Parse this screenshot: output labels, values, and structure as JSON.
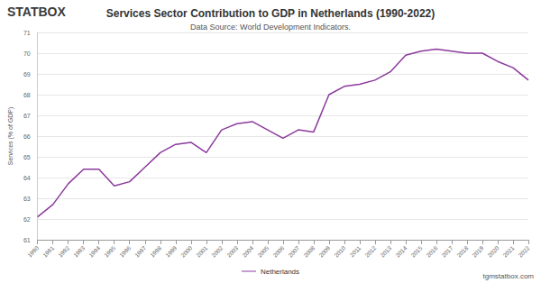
{
  "chart_data": {
    "type": "line",
    "title": "Services Sector Contribution to GDP in Netherlands (1990-2022)",
    "subtitle": "Data Source: World Development Indicators.",
    "logo": "STATBOX",
    "footer": "tgmstatbox.com",
    "y_label": "Services (% of GDP)",
    "categories": [
      "1990",
      "1991",
      "1992",
      "1993",
      "1994",
      "1995",
      "1996",
      "1997",
      "1998",
      "1999",
      "2000",
      "2001",
      "2002",
      "2003",
      "2004",
      "2005",
      "2006",
      "2007",
      "2008",
      "2009",
      "2010",
      "2011",
      "2012",
      "2013",
      "2014",
      "2015",
      "2016",
      "2017",
      "2018",
      "2019",
      "2020",
      "2021",
      "2022"
    ],
    "series": [
      {
        "name": "Netherlands",
        "color": "#8b3a9c",
        "values": [
          62.1,
          62.7,
          63.7,
          64.4,
          64.4,
          63.6,
          63.8,
          64.5,
          65.2,
          65.6,
          65.7,
          65.2,
          66.3,
          66.6,
          66.7,
          66.3,
          65.9,
          66.3,
          66.2,
          68.0,
          68.4,
          68.5,
          68.7,
          69.1,
          69.9,
          70.1,
          70.2,
          70.1,
          70.0,
          70.0,
          69.6,
          69.3,
          68.7
        ]
      }
    ],
    "ylim": [
      61,
      71
    ],
    "yticks": [
      61,
      62,
      63,
      64,
      65,
      66,
      67,
      68,
      69,
      70,
      71
    ],
    "grid": true,
    "legend": "bottom"
  }
}
